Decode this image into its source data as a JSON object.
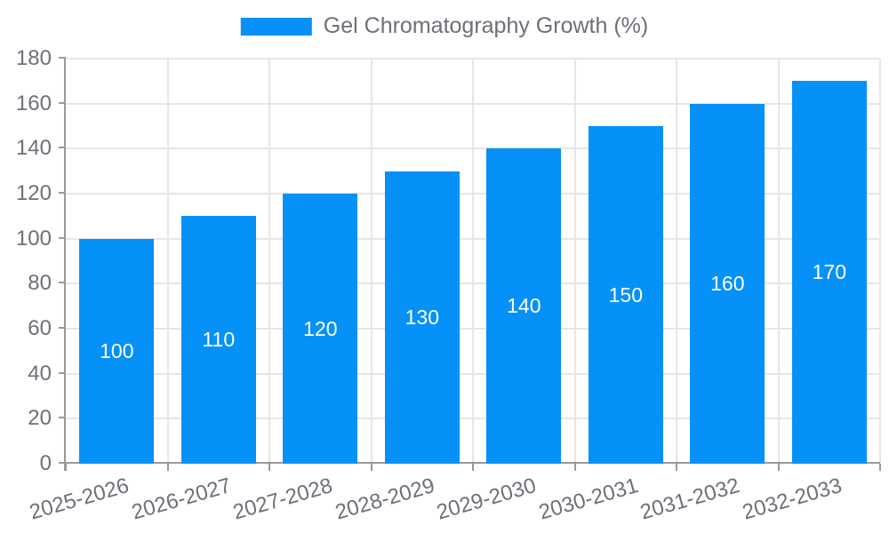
{
  "chart_data": {
    "type": "bar",
    "title": "",
    "xlabel": "",
    "ylabel": "",
    "legend": {
      "label": "Gel Chromatography Growth (%)",
      "position": "top-center"
    },
    "categories": [
      "2025-2026",
      "2026-2027",
      "2027-2028",
      "2028-2029",
      "2029-2030",
      "2030-2031",
      "2031-2032",
      "2032-2033"
    ],
    "series": [
      {
        "name": "Gel Chromatography Growth (%)",
        "values": [
          100,
          110,
          120,
          130,
          140,
          150,
          160,
          170
        ]
      }
    ],
    "value_labels": [
      "100",
      "110",
      "120",
      "130",
      "140",
      "150",
      "160",
      "170"
    ],
    "value_label_position": "inside-center",
    "ylim": [
      0,
      180
    ],
    "yticks": [
      0,
      20,
      40,
      60,
      80,
      100,
      120,
      140,
      160,
      180
    ],
    "grid": true,
    "x_label_rotation_deg": 16
  },
  "colors": {
    "background": "#FFFFFF",
    "bar": "#0591F8",
    "axis": "#999999",
    "gridline": "#E6E6E6",
    "tick_text": "#6E7079",
    "legend_text": "#6E7079",
    "bar_label_text": "#FFFFFF"
  }
}
